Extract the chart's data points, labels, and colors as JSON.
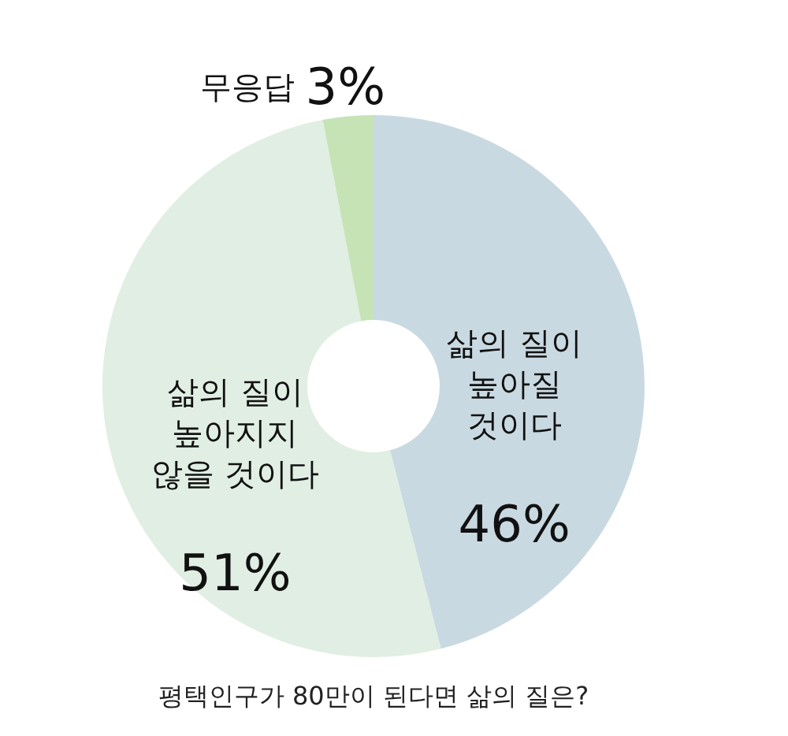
{
  "chart_data": {
    "type": "donut",
    "title": "평택인구가 80만이 된다면 삶의 질은?",
    "categories": [
      "삶의 질이\n높아질\n것이다",
      "삶의 질이\n높아지지\n않을 것이다",
      "무응답"
    ],
    "values": [
      46,
      51,
      3
    ],
    "colors": [
      "#c9d9e1",
      "#e1eee3",
      "#c6e3b6"
    ],
    "value_labels": [
      "46%",
      "51%",
      "3%"
    ]
  }
}
